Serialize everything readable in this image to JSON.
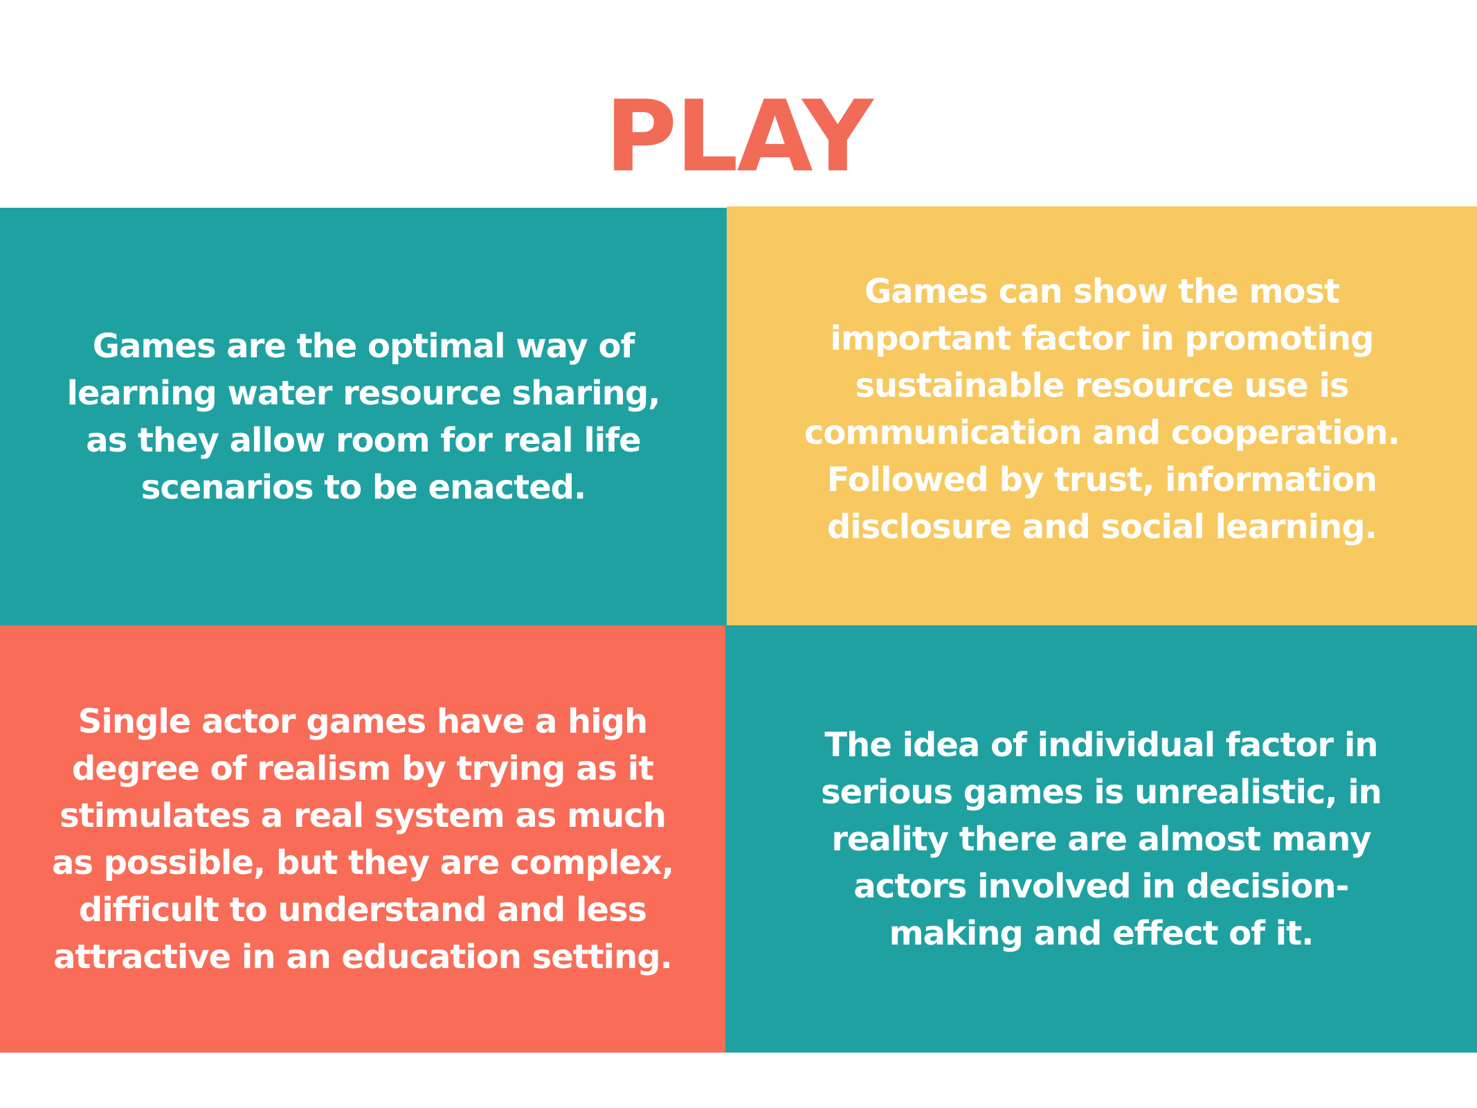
{
  "title": "PLAY",
  "colors": {
    "title": "#f26b57",
    "teal": "#1fa1a2",
    "yellow": "#f8c960",
    "coral": "#f86c58",
    "text": "#ffffff"
  },
  "panels": {
    "top_left": "Games are the optimal way of learning water resource sharing, as they allow room for real life scenarios to be enacted.",
    "top_right": "Games can show the most important factor in promoting sustainable resource use is communication and cooperation. Followed by trust, information disclosure and social learning.",
    "bottom_left": "Single actor games have a high degree of realism by trying as it stimulates a real system as much as possible, but they are complex, difficult to understand and less attractive in an education setting.",
    "bottom_right": "The idea of individual factor in serious games is unrealistic, in reality there are almost many actors involved in decision-making and effect of it."
  }
}
